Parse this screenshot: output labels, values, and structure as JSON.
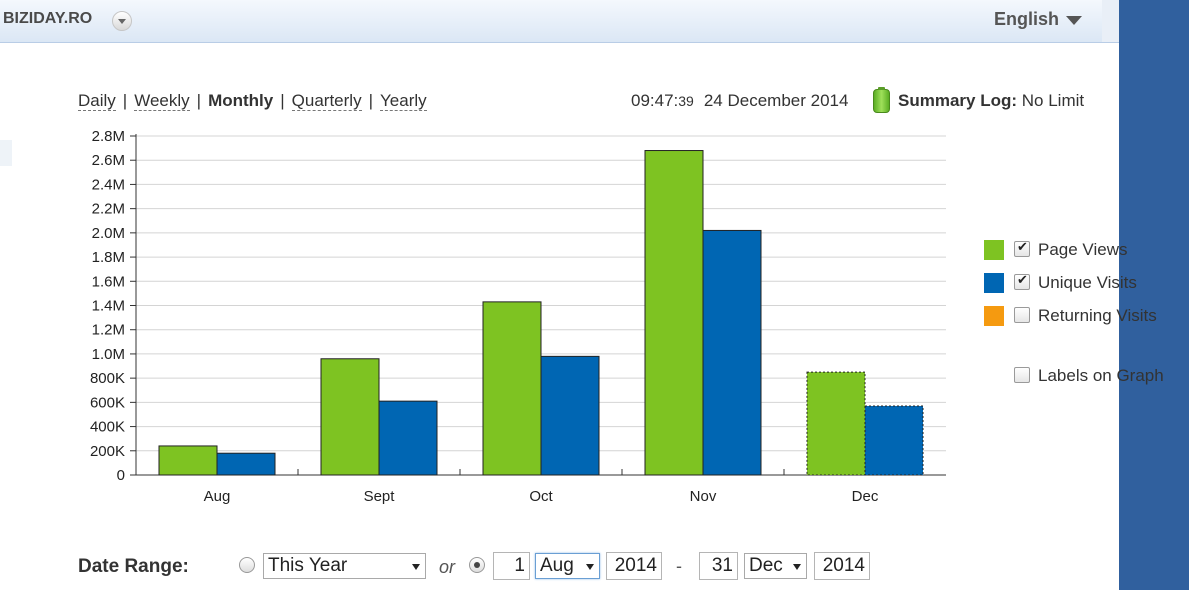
{
  "header": {
    "site": "BIZIDAY.RO",
    "language": "English"
  },
  "periods": {
    "daily": "Daily",
    "weekly": "Weekly",
    "monthly": "Monthly",
    "quarterly": "Quarterly",
    "yearly": "Yearly",
    "separator": "|"
  },
  "status": {
    "time_hm": "09:47:",
    "time_s": "39",
    "date": "24 December 2014",
    "summary_label": "Summary Log:",
    "summary_value": "No Limit"
  },
  "legend": [
    {
      "label": "Page Views",
      "color": "#7ec322",
      "checked": true
    },
    {
      "label": "Unique Visits",
      "color": "#0066b3",
      "checked": true
    },
    {
      "label": "Returning Visits",
      "color": "#f59a10",
      "checked": false
    }
  ],
  "labels_on_graph": {
    "label": "Labels on Graph",
    "checked": false
  },
  "chart_data": {
    "type": "bar",
    "categories": [
      "Aug",
      "Sept",
      "Oct",
      "Nov",
      "Dec"
    ],
    "series": [
      {
        "name": "Page Views",
        "values": [
          240000,
          960000,
          1430000,
          2680000,
          850000
        ]
      },
      {
        "name": "Unique Visits",
        "values": [
          180000,
          610000,
          980000,
          2020000,
          570000
        ]
      }
    ],
    "yticks": [
      "0",
      "200K",
      "400K",
      "600K",
      "800K",
      "1.0M",
      "1.2M",
      "1.4M",
      "1.6M",
      "1.8M",
      "2.0M",
      "2.2M",
      "2.4M",
      "2.6M",
      "2.8M"
    ],
    "ylim": [
      0,
      2800000
    ],
    "grid": true,
    "legend_position": "right"
  },
  "date_range": {
    "label": "Date Range:",
    "preset": "This Year",
    "or": "or",
    "from_day": "1",
    "from_month": "Aug",
    "from_year": "2014",
    "dash": "-",
    "to_day": "31",
    "to_month": "Dec",
    "to_year": "2014"
  }
}
